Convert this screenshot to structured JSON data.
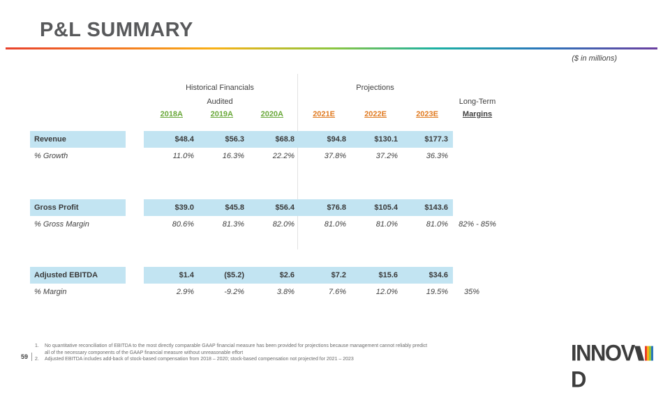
{
  "slide": {
    "title": "P&L SUMMARY",
    "units_note": "($ in millions)",
    "page_number": "59"
  },
  "headers": {
    "historical": "Historical Financials",
    "audited": "Audited",
    "projections": "Projections",
    "long_term": "Long-Term",
    "years": [
      "2018A",
      "2019A",
      "2020A",
      "2021E",
      "2022E",
      "2023E"
    ],
    "margins": "Margins"
  },
  "rows": [
    {
      "label": "Revenue",
      "values": [
        "$48.4",
        "$56.3",
        "$68.8",
        "$94.8",
        "$130.1",
        "$177.3"
      ],
      "long_term": ""
    },
    {
      "label": "% Growth",
      "values": [
        "11.0%",
        "16.3%",
        "22.2%",
        "37.8%",
        "37.2%",
        "36.3%"
      ],
      "long_term": ""
    },
    {
      "label": "Gross Profit",
      "values": [
        "$39.0",
        "$45.8",
        "$56.4",
        "$76.8",
        "$105.4",
        "$143.6"
      ],
      "long_term": ""
    },
    {
      "label": "% Gross Margin",
      "values": [
        "80.6%",
        "81.3%",
        "82.0%",
        "81.0%",
        "81.0%",
        "81.0%"
      ],
      "long_term": "82% - 85%"
    },
    {
      "label": "Adjusted EBITDA",
      "values": [
        "$1.4",
        "($5.2)",
        "$2.6",
        "$7.2",
        "$15.6",
        "$34.6"
      ],
      "long_term": ""
    },
    {
      "label": "% Margin",
      "values": [
        "2.9%",
        "-9.2%",
        "3.8%",
        "7.6%",
        "12.0%",
        "19.5%"
      ],
      "long_term": "35%"
    }
  ],
  "footnotes": [
    {
      "num": "1.",
      "text": "No quantitative reconciliation of EBITDA to the most directly comparable GAAP financial measure has been provided for projections because management cannot reliably predict all of the necessary components of the GAAP financial measure without unreasonable effort"
    },
    {
      "num": "2.",
      "text": "Adjusted EBITDA includes add-back of stock-based compensation from 2018 – 2020; stock-based compensation not projected for 2021 – 2023"
    }
  ],
  "logo": {
    "text_before": "INNOV",
    "text_after": "D",
    "brand_colors": [
      "#e8412c",
      "#f9b115",
      "#8dc63f",
      "#1bb1a3",
      "#2a77bb",
      "#6b3fa0"
    ]
  }
}
